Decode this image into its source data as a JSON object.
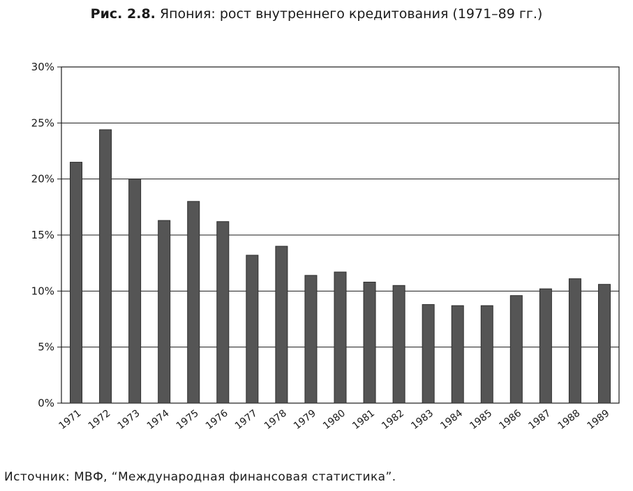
{
  "header": {
    "figure_label": "Рис. 2.8.",
    "title_text": "Япония: рост внутреннего кредитования (1971–89 гг.)"
  },
  "footer": {
    "source": "Источник: МВФ, “Международная финансовая статистика”."
  },
  "colors": {
    "bar": "#555555",
    "bar_edge": "#2e2e2e",
    "grid": "#1a1a1a",
    "axis": "#1a1a1a"
  },
  "chart_data": {
    "type": "bar",
    "title": "Япония: рост внутреннего кредитования (1971–89 гг.)",
    "xlabel": "",
    "ylabel": "",
    "ylim": [
      0,
      30
    ],
    "yticks": [
      0,
      5,
      10,
      15,
      20,
      25,
      30
    ],
    "ytick_labels": [
      "0%",
      "5%",
      "10%",
      "15%",
      "20%",
      "25%",
      "30%"
    ],
    "grid": true,
    "categories": [
      "1971",
      "1972",
      "1973",
      "1974",
      "1975",
      "1976",
      "1977",
      "1978",
      "1979",
      "1980",
      "1981",
      "1982",
      "1983",
      "1984",
      "1985",
      "1986",
      "1987",
      "1988",
      "1989"
    ],
    "values": [
      21.5,
      24.4,
      20.0,
      16.3,
      18.0,
      16.2,
      13.2,
      14.0,
      11.4,
      11.7,
      10.8,
      10.5,
      8.8,
      8.7,
      8.7,
      9.6,
      10.2,
      11.1,
      10.6
    ]
  }
}
